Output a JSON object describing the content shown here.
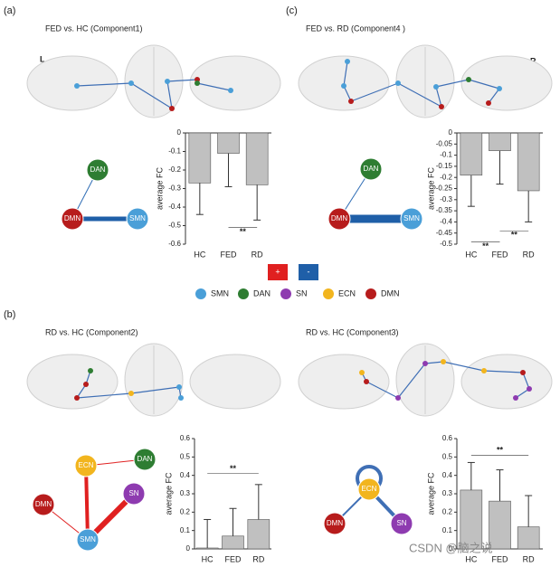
{
  "panels": [
    "(a)",
    "(c)",
    "(b)"
  ],
  "hemispheres": [
    "L",
    "R"
  ],
  "chart_data": [
    {
      "type": "bar",
      "title": "FED vs. HC (Component1)",
      "ylabel": "average FC",
      "categories": [
        "HC",
        "FED",
        "RD"
      ],
      "values": [
        -0.27,
        -0.11,
        -0.28
      ],
      "errors": [
        0.17,
        0.18,
        0.19
      ],
      "color": "#c0c0c0",
      "ylim": [
        -0.6,
        0
      ],
      "yticks": [
        0,
        -0.1,
        -0.2,
        -0.3,
        -0.4,
        -0.5,
        -0.6
      ],
      "annotations": [
        {
          "text": "**",
          "y": -0.51
        }
      ]
    },
    {
      "type": "bar",
      "title": "FED vs. RD (Component4 )",
      "ylabel": "average FC",
      "categories": [
        "HC",
        "FED",
        "RD"
      ],
      "values": [
        -0.19,
        -0.08,
        -0.26
      ],
      "errors": [
        0.14,
        0.15,
        0.14
      ],
      "color": "#c0c0c0",
      "ylim": [
        -0.5,
        0
      ],
      "yticks": [
        0,
        -0.05,
        -0.1,
        -0.15,
        -0.2,
        -0.25,
        -0.3,
        -0.35,
        -0.4,
        -0.45,
        -0.5
      ],
      "annotations": [
        {
          "text": "**",
          "y": -0.49
        },
        {
          "text": "**",
          "y": -0.44
        }
      ]
    },
    {
      "type": "bar",
      "title": "RD vs. HC (Component2)",
      "ylabel": "average FC",
      "categories": [
        "HC",
        "FED",
        "RD"
      ],
      "values": [
        0.005,
        0.07,
        0.16
      ],
      "errors": [
        0.155,
        0.15,
        0.19
      ],
      "color": "#c0c0c0",
      "ylim": [
        0,
        0.6
      ],
      "yticks": [
        0,
        0.1,
        0.2,
        0.3,
        0.4,
        0.5,
        0.6
      ],
      "annotations": [
        {
          "text": "**",
          "y": 0.41
        }
      ]
    },
    {
      "type": "bar",
      "title": "RD vs. HC (Component3)",
      "ylabel": "average FC",
      "categories": [
        "HC",
        "FED",
        "RD"
      ],
      "values": [
        0.32,
        0.26,
        0.12
      ],
      "errors": [
        0.15,
        0.17,
        0.17
      ],
      "color": "#c0c0c0",
      "ylim": [
        0,
        0.6
      ],
      "yticks": [
        0,
        0.1,
        0.2,
        0.3,
        0.4,
        0.5,
        0.6
      ],
      "annotations": [
        {
          "text": "**",
          "y": 0.51
        }
      ]
    }
  ],
  "networks": [
    [
      {
        "label": "DAN",
        "color": "#2e7d32"
      },
      {
        "label": "DMN",
        "color": "#b71c1c"
      },
      {
        "label": "SMN",
        "color": "#4a9fd8"
      }
    ],
    [
      {
        "label": "DAN",
        "color": "#2e7d32"
      },
      {
        "label": "DMN",
        "color": "#b71c1c"
      },
      {
        "label": "SMN",
        "color": "#4a9fd8"
      }
    ],
    [
      {
        "label": "ECN",
        "color": "#f2b51e"
      },
      {
        "label": "DAN",
        "color": "#2e7d32"
      },
      {
        "label": "DMN",
        "color": "#b71c1c"
      },
      {
        "label": "SN",
        "color": "#8e3bb0"
      },
      {
        "label": "SMN",
        "color": "#4a9fd8"
      }
    ],
    [
      {
        "label": "ECN",
        "color": "#f2b51e"
      },
      {
        "label": "DMN",
        "color": "#b71c1c"
      },
      {
        "label": "SN",
        "color": "#8e3bb0"
      }
    ]
  ],
  "sign_legend": [
    {
      "label": "+",
      "color": "#e02020"
    },
    {
      "label": "-",
      "color": "#1f5fa8"
    }
  ],
  "node_legend": [
    {
      "label": "SMN",
      "color": "#4a9fd8"
    },
    {
      "label": "DAN",
      "color": "#2e7d32"
    },
    {
      "label": "SN",
      "color": "#8e3bb0"
    },
    {
      "label": "ECN",
      "color": "#f2b51e"
    },
    {
      "label": "DMN",
      "color": "#b71c1c"
    }
  ],
  "watermark": "CSDN @脑之说"
}
